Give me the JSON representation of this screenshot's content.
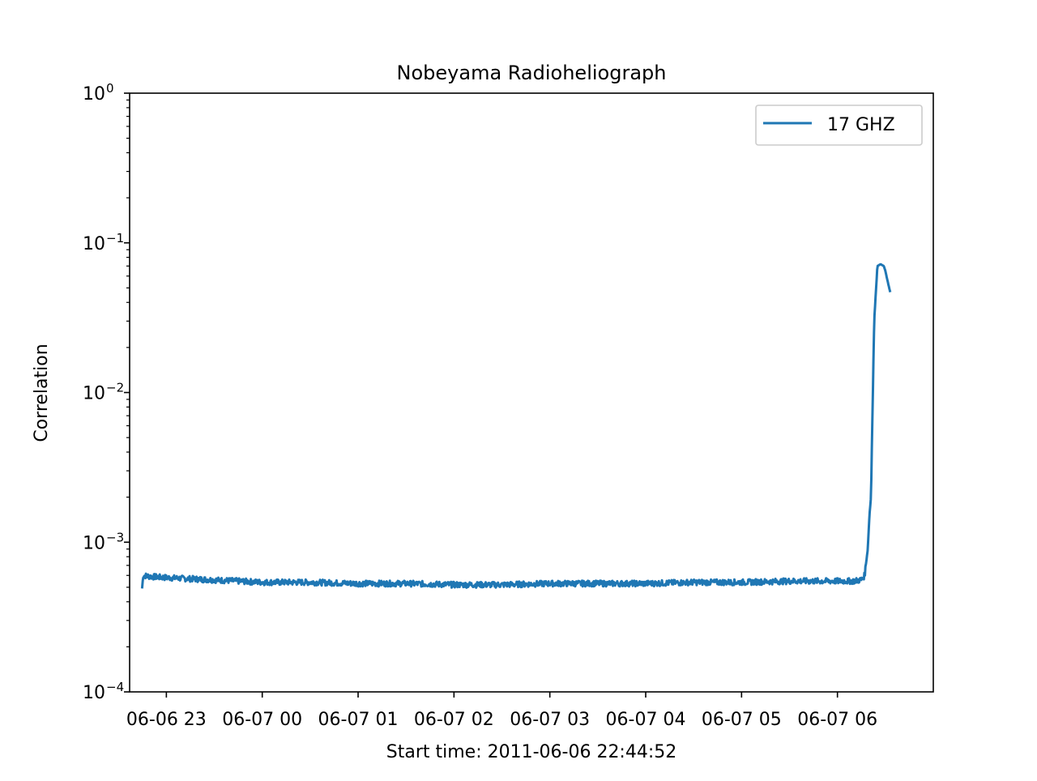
{
  "chart_data": {
    "type": "line",
    "title": "Nobeyama Radioheliograph",
    "xlabel": "Start time: 2011-06-06 22:44:52",
    "ylabel": "Correlation",
    "yscale": "log",
    "xlim": [
      "2011-06-06 22:37:00",
      "2011-06-07 07:00:00"
    ],
    "ylim": [
      0.0001,
      1
    ],
    "x_tick_labels": [
      "06-06 23",
      "06-07 00",
      "06-07 01",
      "06-07 02",
      "06-07 03",
      "06-07 04",
      "06-07 05",
      "06-07 06"
    ],
    "y_tick_labels": [
      {
        "base": "10",
        "exp": "0"
      },
      {
        "base": "10",
        "exp": "−1"
      },
      {
        "base": "10",
        "exp": "−2"
      },
      {
        "base": "10",
        "exp": "−3"
      },
      {
        "base": "10",
        "exp": "−4"
      }
    ],
    "legend": {
      "position": "upper right",
      "entries": [
        "17 GHZ"
      ]
    },
    "grid": false,
    "series": [
      {
        "name": "17 GHZ",
        "color": "#1f77b4",
        "x": [
          "2011-06-06 22:44:52",
          "2011-06-06 22:45:30",
          "2011-06-06 22:50:00",
          "2011-06-06 23:00:00",
          "2011-06-06 23:15:00",
          "2011-06-06 23:30:00",
          "2011-06-06 23:45:00",
          "2011-06-07 00:00:00",
          "2011-06-07 00:30:00",
          "2011-06-07 01:00:00",
          "2011-06-07 01:30:00",
          "2011-06-07 02:00:00",
          "2011-06-07 02:30:00",
          "2011-06-07 03:00:00",
          "2011-06-07 03:30:00",
          "2011-06-07 04:00:00",
          "2011-06-07 04:30:00",
          "2011-06-07 05:00:00",
          "2011-06-07 05:30:00",
          "2011-06-07 06:00:00",
          "2011-06-07 06:10:00",
          "2011-06-07 06:15:00",
          "2011-06-07 06:17:00",
          "2011-06-07 06:19:00",
          "2011-06-07 06:20:00",
          "2011-06-07 06:21:00",
          "2011-06-07 06:22:00",
          "2011-06-07 06:23:00",
          "2011-06-07 06:25:00",
          "2011-06-07 06:27:00",
          "2011-06-07 06:29:00",
          "2011-06-07 06:30:00",
          "2011-06-07 06:31:00",
          "2011-06-07 06:32:00",
          "2011-06-07 06:33:00"
        ],
        "y": [
          0.0005,
          0.0006,
          0.00059,
          0.00058,
          0.00057,
          0.00056,
          0.00055,
          0.00054,
          0.00054,
          0.00053,
          0.00053,
          0.00052,
          0.00052,
          0.00053,
          0.00053,
          0.00053,
          0.00054,
          0.00054,
          0.00055,
          0.00055,
          0.00055,
          0.00056,
          0.0006,
          0.0009,
          0.0015,
          0.002,
          0.008,
          0.03,
          0.07,
          0.072,
          0.07,
          0.065,
          0.058,
          0.052,
          0.047
        ]
      }
    ]
  }
}
